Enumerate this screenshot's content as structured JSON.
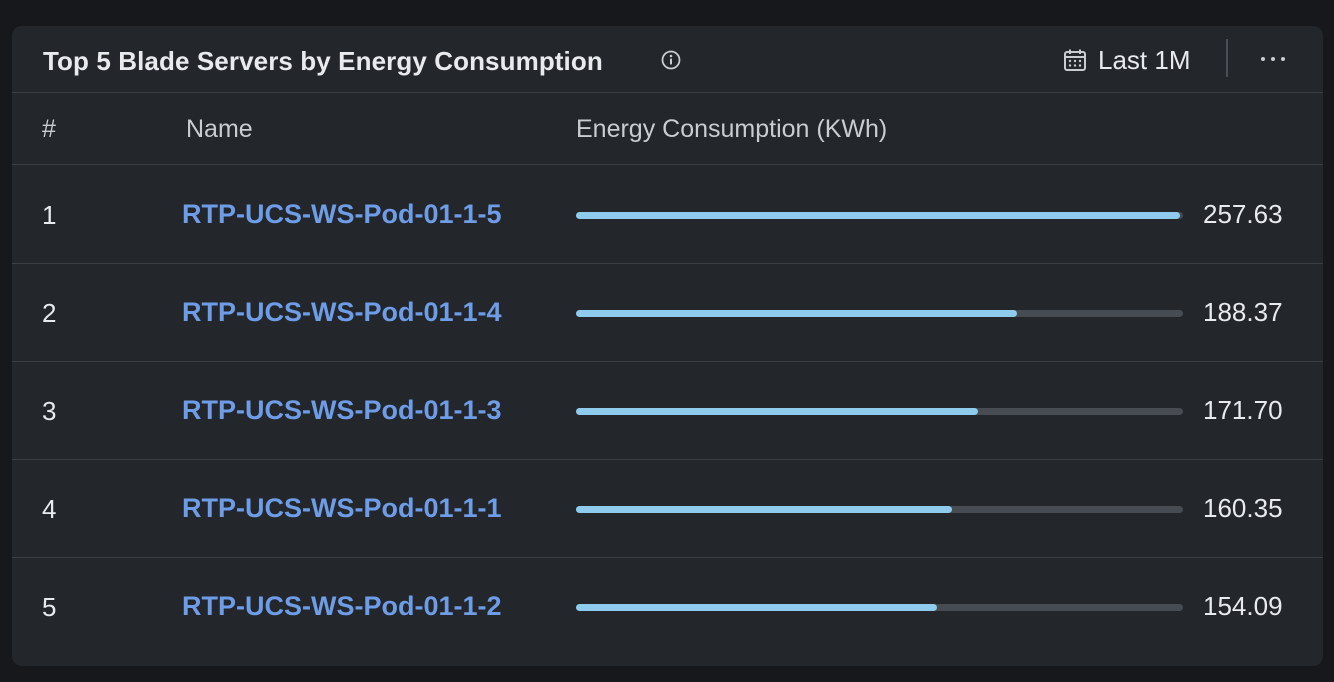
{
  "widget": {
    "title": "Top 5 Blade Servers by Energy Consumption",
    "date_range_label": "Last 1M",
    "icons": {
      "info": "info-icon",
      "calendar": "calendar-icon",
      "more": "more-horizontal-icon"
    }
  },
  "table": {
    "columns": {
      "rank": "#",
      "name": "Name",
      "energy": "Energy Consumption (KWh)"
    },
    "bar_max": 259,
    "rows": [
      {
        "rank": "1",
        "name": "RTP-UCS-WS-Pod-01-1-5",
        "value": 257.63,
        "value_label": "257.63"
      },
      {
        "rank": "2",
        "name": "RTP-UCS-WS-Pod-01-1-4",
        "value": 188.37,
        "value_label": "188.37"
      },
      {
        "rank": "3",
        "name": "RTP-UCS-WS-Pod-01-1-3",
        "value": 171.7,
        "value_label": "171.70"
      },
      {
        "rank": "4",
        "name": "RTP-UCS-WS-Pod-01-1-1",
        "value": 160.35,
        "value_label": "160.35"
      },
      {
        "rank": "5",
        "name": "RTP-UCS-WS-Pod-01-1-2",
        "value": 154.09,
        "value_label": "154.09"
      }
    ]
  },
  "colors": {
    "bar_fill": "#8ecbec",
    "bar_track": "#474b52",
    "link": "#6e9ce6"
  }
}
